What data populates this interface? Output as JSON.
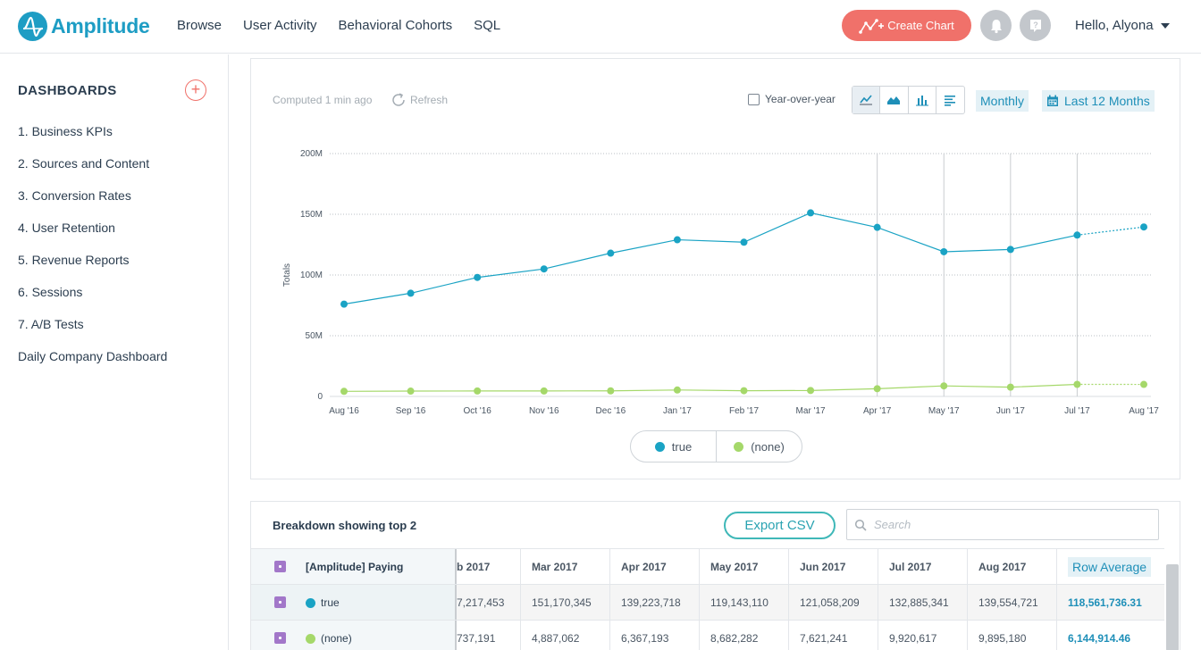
{
  "app": {
    "name": "Amplitude"
  },
  "nav": [
    "Browse",
    "User Activity",
    "Behavioral Cohorts",
    "SQL"
  ],
  "header": {
    "create_label": "Create Chart",
    "greeting": "Hello, Alyona"
  },
  "sidebar": {
    "title": "DASHBOARDS",
    "items": [
      "1. Business KPIs",
      "2. Sources and Content",
      "3. Conversion Rates",
      "4. User Retention",
      "5. Revenue Reports",
      "6. Sessions",
      "7. A/B Tests",
      "Daily Company Dashboard"
    ]
  },
  "chart_panel": {
    "computed": "Computed 1 min ago",
    "refresh": "Refresh",
    "yoy": "Year-over-year",
    "interval": "Monthly",
    "range": "Last 12 Months",
    "chart_types": [
      "line-chart-icon",
      "area-chart-icon",
      "bar-chart-icon",
      "table-view-icon"
    ]
  },
  "chart_data": {
    "type": "line",
    "ylabel": "Totals",
    "ylim": [
      0,
      200000000
    ],
    "yticks": [
      "0",
      "50M",
      "100M",
      "150M",
      "200M"
    ],
    "yticks_values": [
      0,
      50000000,
      100000000,
      150000000,
      200000000
    ],
    "categories": [
      "Aug '16",
      "Sep '16",
      "Oct '16",
      "Nov '16",
      "Dec '16",
      "Jan '17",
      "Feb '17",
      "Mar '17",
      "Apr '17",
      "May '17",
      "Jun '17",
      "Jul '17",
      "Aug '17"
    ],
    "series": [
      {
        "name": "true",
        "color": "#1aa3c4",
        "values": [
          76000000,
          85000000,
          98000000,
          105000000,
          118000000,
          129000000,
          127000000,
          151170345,
          139223718,
          119143110,
          121058209,
          132885341,
          139554721
        ]
      },
      {
        "name": "(none)",
        "color": "#a5d86a",
        "values": [
          4200000,
          4400000,
          4500000,
          4500000,
          4600000,
          5300000,
          4700000,
          4887062,
          6367193,
          8682282,
          7621241,
          9920617,
          9895180
        ]
      }
    ],
    "grid": true,
    "legend": "bottom-center",
    "projected_last_point": true
  },
  "breakdown": {
    "title": "Breakdown showing top 2",
    "export_label": "Export CSV",
    "search_placeholder": "Search",
    "segment_header": "[Amplitude] Paying",
    "columns": [
      "b 2017",
      "Mar 2017",
      "Apr 2017",
      "May 2017",
      "Jun 2017",
      "Jul 2017",
      "Aug 2017",
      "Row Average"
    ],
    "rows": [
      {
        "name": "true",
        "color": "#1aa3c4",
        "cells": [
          "7,217,453",
          "151,170,345",
          "139,223,718",
          "119,143,110",
          "121,058,209",
          "132,885,341",
          "139,554,721",
          "118,561,736.31"
        ]
      },
      {
        "name": "(none)",
        "color": "#a5d86a",
        "cells": [
          "737,191",
          "4,887,062",
          "6,367,193",
          "8,682,282",
          "7,621,241",
          "9,920,617",
          "9,895,180",
          "6,144,914.46"
        ]
      }
    ]
  }
}
